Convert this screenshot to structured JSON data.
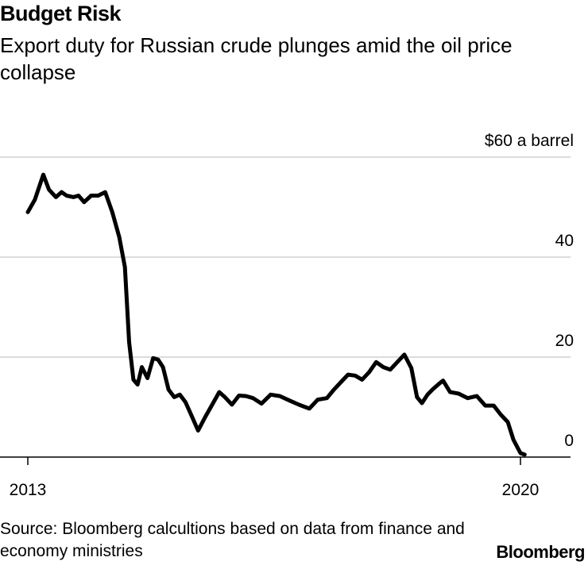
{
  "title": "Budget Risk",
  "subtitle": "Export duty for Russian crude plunges amid the oil price collapse",
  "source": "Source: Bloomberg calcultions based on data from finance and economy ministries",
  "brand": "Bloomberg",
  "chart_data": {
    "type": "line",
    "title": "Budget Risk",
    "subtitle": "Export duty for Russian crude plunges amid the oil price collapse",
    "unit_label": "$60 a barrel",
    "y_ticks": [
      {
        "value": 60,
        "label": "$60 a barrel"
      },
      {
        "value": 40,
        "label": "40"
      },
      {
        "value": 20,
        "label": "20"
      },
      {
        "value": 0,
        "label": "0"
      }
    ],
    "x_ticks": [
      {
        "value": 2013,
        "label": "2013"
      },
      {
        "value": 2020,
        "label": "2020"
      }
    ],
    "xlim": [
      2012.88,
      2020.35
    ],
    "ylim": [
      0,
      60
    ],
    "grid": true,
    "color": "#000000",
    "series": [
      {
        "x": [
          2013.0,
          2013.1,
          2013.22,
          2013.3,
          2013.4,
          2013.48,
          2013.55,
          2013.65,
          2013.72,
          2013.8,
          2013.9,
          2014.0,
          2014.1,
          2014.2,
          2014.3,
          2014.38,
          2014.44,
          2014.5,
          2014.56,
          2014.62,
          2014.7,
          2014.78,
          2014.85,
          2014.92,
          2015.0,
          2015.08,
          2015.16,
          2015.24,
          2015.32,
          2015.42,
          2015.52,
          2015.62,
          2015.72,
          2015.8,
          2015.9,
          2016.0,
          2016.1,
          2016.2,
          2016.32,
          2016.45,
          2016.58,
          2016.72,
          2016.85,
          2017.0,
          2017.12,
          2017.25,
          2017.35,
          2017.45,
          2017.55,
          2017.65,
          2017.75,
          2017.85,
          2017.95,
          2018.05,
          2018.15,
          2018.25,
          2018.35,
          2018.45,
          2018.53,
          2018.6,
          2018.68,
          2018.75,
          2018.83,
          2018.9,
          2019.0,
          2019.12,
          2019.25,
          2019.38,
          2019.5,
          2019.62,
          2019.72,
          2019.82,
          2019.9,
          2020.0,
          2020.06
        ],
        "y": [
          49,
          51.5,
          56.5,
          53.5,
          52,
          53,
          52.3,
          52,
          52.3,
          51,
          52.3,
          52.3,
          53,
          49,
          44,
          38,
          23,
          15.5,
          14.5,
          18,
          15.8,
          19.8,
          19.5,
          18,
          13.5,
          12,
          12.5,
          11,
          8.5,
          5.3,
          8,
          10.5,
          13,
          12,
          10.5,
          12.3,
          12.2,
          11.8,
          10.7,
          12.5,
          12.2,
          11.3,
          10.5,
          9.7,
          11.5,
          11.8,
          13.5,
          15,
          16.5,
          16.3,
          15.5,
          17,
          19,
          18,
          17.5,
          19,
          20.5,
          17.8,
          12,
          10.8,
          12.5,
          13.5,
          14.5,
          15.3,
          13,
          12.7,
          11.8,
          12.2,
          10.3,
          10.3,
          8.5,
          7,
          3.5,
          0.8,
          0.5
        ]
      }
    ]
  }
}
